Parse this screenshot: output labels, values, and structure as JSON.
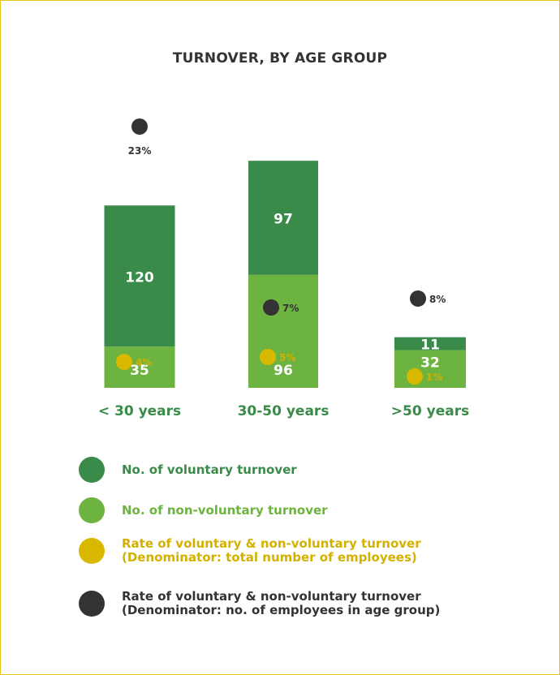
{
  "colors": {
    "frame": "#e8c51c",
    "voluntary": "#3a8a4a",
    "non_voluntary": "#6db33f",
    "rate_total": "#d9b800",
    "rate_group": "#333333",
    "text_dark": "#333333",
    "text_green": "#3a8a4a",
    "text_light_green": "#6db33f",
    "text_yellow": "#d4b000"
  },
  "chart_data": {
    "type": "bar",
    "stacked": true,
    "title": "TURNOVER, BY AGE GROUP",
    "categories": [
      "< 30 years",
      "30-50 years",
      ">50 years"
    ],
    "series": [
      {
        "name": "No. of non-voluntary turnover",
        "values": [
          35,
          96,
          32
        ]
      },
      {
        "name": "No. of voluntary turnover",
        "values": [
          120,
          97,
          11
        ]
      }
    ],
    "rates": [
      {
        "name": "Rate of voluntary & non-voluntary turnover (Denominator: total number of employees)",
        "values": [
          4,
          5,
          1
        ],
        "labels": [
          "4%",
          "5%",
          "1%"
        ]
      },
      {
        "name": "Rate of voluntary & non-voluntary turnover (Denominator: no. of employees in age group)",
        "values": [
          23,
          7,
          8
        ],
        "labels": [
          "23%",
          "7%",
          "8%"
        ]
      }
    ],
    "ylim": [
      0,
      200
    ],
    "grid": false,
    "legend": "bottom"
  },
  "legend": [
    {
      "key": "voluntary",
      "lines": [
        "No. of voluntary turnover"
      ]
    },
    {
      "key": "non_voluntary",
      "lines": [
        "No. of non-voluntary turnover"
      ]
    },
    {
      "key": "rate_total",
      "lines": [
        "Rate of voluntary & non-voluntary turnover",
        "(Denominator: total number of employees)"
      ]
    },
    {
      "key": "rate_group",
      "lines": [
        "Rate of voluntary & non-voluntary turnover",
        "(Denominator: no. of employees in age group)"
      ]
    }
  ]
}
